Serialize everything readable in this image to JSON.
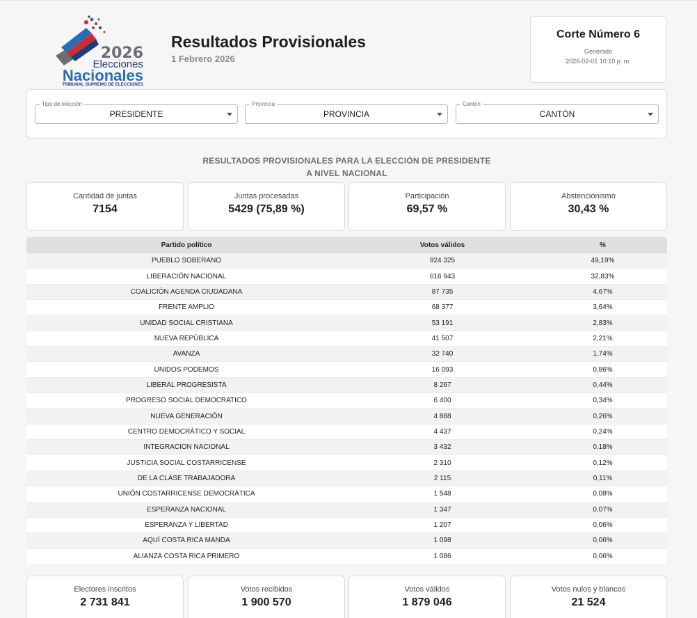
{
  "header": {
    "logo": {
      "year": "2026",
      "line1": "Elecciones",
      "line2": "Nacionales",
      "tagline": "TRIBUNAL SUPREMO DE ELECCIONES"
    },
    "title": "Resultados Provisionales",
    "date": "1 Febrero 2026",
    "corte": {
      "title": "Corte Número 6",
      "generated_label": "Generado",
      "timestamp": "2026-02-01 10:10 p. m."
    }
  },
  "filters": [
    {
      "label": "Tipo de elección",
      "value": "PRESIDENTE"
    },
    {
      "label": "Provincia",
      "value": "PROVINCIA"
    },
    {
      "label": "Cantón",
      "value": "CANTÓN"
    }
  ],
  "section": {
    "line1": "RESULTADOS PROVISIONALES PARA LA ELECCIÓN DE PRESIDENTE",
    "line2": "A NIVEL NACIONAL"
  },
  "stats_top": [
    {
      "label": "Cantidad de juntas",
      "value": "7154"
    },
    {
      "label": "Juntas procesadas",
      "value": "5429 (75,89 %)"
    },
    {
      "label": "Participación",
      "value": "69,57 %"
    },
    {
      "label": "Abstencionismo",
      "value": "30,43 %"
    }
  ],
  "table": {
    "headers": [
      "Partido político",
      "Votos válidos",
      "%"
    ],
    "rows": [
      [
        "PUEBLO SOBERANO",
        "924 325",
        "49,19%"
      ],
      [
        "LIBERACIÓN NACIONAL",
        "616 943",
        "32,83%"
      ],
      [
        "COALICIÓN AGENDA CIUDADANA",
        "87 735",
        "4,67%"
      ],
      [
        "FRENTE AMPLIO",
        "68 377",
        "3,64%"
      ],
      [
        "UNIDAD SOCIAL CRISTIANA",
        "53 191",
        "2,83%"
      ],
      [
        "NUEVA REPÚBLICA",
        "41 507",
        "2,21%"
      ],
      [
        "AVANZA",
        "32 740",
        "1,74%"
      ],
      [
        "UNIDOS PODEMOS",
        "16 093",
        "0,86%"
      ],
      [
        "LIBERAL PROGRESISTA",
        "8 267",
        "0,44%"
      ],
      [
        "PROGRESO SOCIAL DEMOCRATICO",
        "6 400",
        "0,34%"
      ],
      [
        "NUEVA GENERACIÓN",
        "4 888",
        "0,26%"
      ],
      [
        "CENTRO DEMOCRÁTICO Y SOCIAL",
        "4 437",
        "0,24%"
      ],
      [
        "INTEGRACION NACIONAL",
        "3 432",
        "0,18%"
      ],
      [
        "JUSTICIA SOCIAL COSTARRICENSE",
        "2 310",
        "0,12%"
      ],
      [
        "DE LA CLASE TRABAJADORA",
        "2 115",
        "0,11%"
      ],
      [
        "UNIÓN COSTARRICENSE DEMOCRÁTICA",
        "1 548",
        "0,08%"
      ],
      [
        "ESPERANZA NACIONAL",
        "1 347",
        "0,07%"
      ],
      [
        "ESPERANZA Y LIBERTAD",
        "1 207",
        "0,06%"
      ],
      [
        "AQUÍ COSTA RICA MANDA",
        "1 098",
        "0,06%"
      ],
      [
        "ALIANZA COSTA RICA PRIMERO",
        "1 086",
        "0,06%"
      ]
    ]
  },
  "stats_bottom": [
    {
      "label": "Electores inscritos",
      "value": "2 731 841"
    },
    {
      "label": "Votos recibidos",
      "value": "1 900 570"
    },
    {
      "label": "Votos válidos",
      "value": "1 879 046"
    },
    {
      "label": "Votos nulos y blancos",
      "value": "21 524"
    }
  ],
  "colors": {
    "logo_navy": "#1f3c78",
    "logo_red": "#d9272e",
    "logo_blue": "#2a6db5",
    "logo_gray": "#6d6e71",
    "table_header_bg": "#dedfe1"
  }
}
